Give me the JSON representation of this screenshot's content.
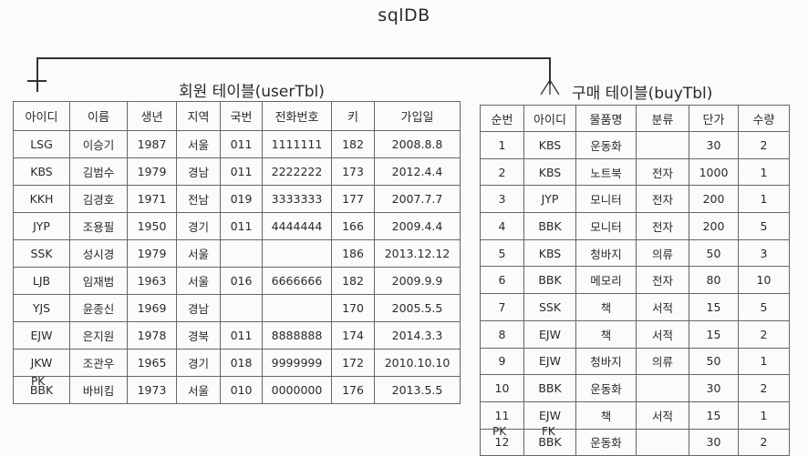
{
  "db_title": "sqlDB",
  "user_table": {
    "title": "회원 테이블(userTbl)",
    "headers": [
      "아이디",
      "이름",
      "생년",
      "지역",
      "국번",
      "전화번호",
      "키",
      "가입일"
    ],
    "rows": [
      [
        "LSG",
        "이승기",
        "1987",
        "서울",
        "011",
        "1111111",
        "182",
        "2008.8.8"
      ],
      [
        "KBS",
        "김범수",
        "1979",
        "경남",
        "011",
        "2222222",
        "173",
        "2012.4.4"
      ],
      [
        "KKH",
        "김경호",
        "1971",
        "전남",
        "019",
        "3333333",
        "177",
        "2007.7.7"
      ],
      [
        "JYP",
        "조용필",
        "1950",
        "경기",
        "011",
        "4444444",
        "166",
        "2009.4.4"
      ],
      [
        "SSK",
        "성시경",
        "1979",
        "서울",
        "",
        "",
        "186",
        "2013.12.12"
      ],
      [
        "LJB",
        "임재범",
        "1963",
        "서울",
        "016",
        "6666666",
        "182",
        "2009.9.9"
      ],
      [
        "YJS",
        "윤종신",
        "1969",
        "경남",
        "",
        "",
        "170",
        "2005.5.5"
      ],
      [
        "EJW",
        "은지원",
        "1978",
        "경북",
        "011",
        "8888888",
        "174",
        "2014.3.3"
      ],
      [
        "JKW",
        "조관우",
        "1965",
        "경기",
        "018",
        "9999999",
        "172",
        "2010.10.10"
      ],
      [
        "BBK",
        "바비킴",
        "1973",
        "서울",
        "010",
        "0000000",
        "176",
        "2013.5.5"
      ]
    ],
    "key_label": "PK"
  },
  "buy_table": {
    "title": "구매 테이블(buyTbl)",
    "headers": [
      "순번",
      "아이디",
      "물품명",
      "분류",
      "단가",
      "수량"
    ],
    "rows": [
      [
        "1",
        "KBS",
        "운동화",
        "",
        "30",
        "2"
      ],
      [
        "2",
        "KBS",
        "노트북",
        "전자",
        "1000",
        "1"
      ],
      [
        "3",
        "JYP",
        "모니터",
        "전자",
        "200",
        "1"
      ],
      [
        "4",
        "BBK",
        "모니터",
        "전자",
        "200",
        "5"
      ],
      [
        "5",
        "KBS",
        "청바지",
        "의류",
        "50",
        "3"
      ],
      [
        "6",
        "BBK",
        "메모리",
        "전자",
        "80",
        "10"
      ],
      [
        "7",
        "SSK",
        "책",
        "서적",
        "15",
        "5"
      ],
      [
        "8",
        "EJW",
        "책",
        "서적",
        "15",
        "2"
      ],
      [
        "9",
        "EJW",
        "청바지",
        "의류",
        "50",
        "1"
      ],
      [
        "10",
        "BBK",
        "운동화",
        "",
        "30",
        "2"
      ],
      [
        "11",
        "EJW",
        "책",
        "서적",
        "15",
        "1"
      ],
      [
        "12",
        "BBK",
        "운동화",
        "",
        "30",
        "2"
      ]
    ],
    "pk_label": "PK",
    "fk_label": "FK"
  }
}
